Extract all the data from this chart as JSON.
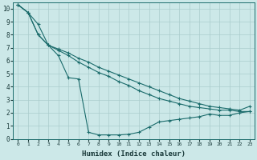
{
  "xlabel": "Humidex (Indice chaleur)",
  "background_color": "#cce8e8",
  "line_color": "#1a6b6b",
  "grid_color": "#aacccc",
  "xlim": [
    -0.5,
    23.5
  ],
  "ylim": [
    0,
    10.5
  ],
  "xticks": [
    0,
    1,
    2,
    3,
    4,
    5,
    6,
    7,
    8,
    9,
    10,
    11,
    12,
    13,
    14,
    15,
    16,
    17,
    18,
    19,
    20,
    21,
    22,
    23
  ],
  "yticks": [
    0,
    1,
    2,
    3,
    4,
    5,
    6,
    7,
    8,
    9,
    10
  ],
  "line1_x": [
    0,
    1,
    2,
    3,
    4,
    5,
    6,
    7,
    8,
    9,
    10,
    11,
    12,
    13,
    14,
    15,
    16,
    17,
    18,
    19,
    20,
    21,
    22,
    23
  ],
  "line1_y": [
    10.3,
    9.7,
    8.0,
    7.2,
    6.4,
    4.7,
    4.6,
    0.5,
    0.3,
    0.3,
    0.3,
    0.35,
    0.5,
    0.9,
    1.3,
    1.4,
    1.5,
    1.6,
    1.7,
    1.9,
    1.8,
    1.8,
    2.0,
    2.1
  ],
  "line2_x": [
    0,
    1,
    2,
    3,
    4,
    5,
    6,
    7,
    8,
    9,
    10,
    11,
    12,
    13,
    14,
    15,
    16,
    17,
    18,
    19,
    20,
    21,
    22,
    23
  ],
  "line2_y": [
    10.3,
    9.7,
    8.8,
    7.2,
    6.8,
    6.4,
    5.9,
    5.5,
    5.1,
    4.8,
    4.4,
    4.1,
    3.7,
    3.4,
    3.1,
    2.9,
    2.7,
    2.5,
    2.4,
    2.3,
    2.2,
    2.2,
    2.1,
    2.1
  ],
  "line3_x": [
    0,
    1,
    2,
    3,
    4,
    5,
    6,
    7,
    8,
    9,
    10,
    11,
    12,
    13,
    14,
    15,
    16,
    17,
    18,
    19,
    20,
    21,
    22,
    23
  ],
  "line3_y": [
    10.3,
    9.7,
    8.0,
    7.2,
    6.9,
    6.6,
    6.2,
    5.9,
    5.5,
    5.2,
    4.9,
    4.6,
    4.3,
    4.0,
    3.7,
    3.4,
    3.1,
    2.9,
    2.7,
    2.5,
    2.4,
    2.3,
    2.2,
    2.5
  ],
  "xlabel_fontsize": 6.5,
  "tick_fontsize": 5.5
}
